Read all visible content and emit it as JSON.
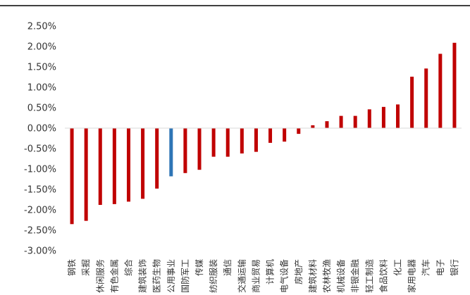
{
  "chart_data": {
    "type": "bar",
    "title": "",
    "xlabel": "",
    "ylabel": "",
    "ylim": [
      -3.0,
      2.5
    ],
    "yticks": [
      "2.50%",
      "2.00%",
      "1.50%",
      "1.00%",
      "0.50%",
      "0.00%",
      "-0.50%",
      "-1.00%",
      "-1.50%",
      "-2.00%",
      "-2.50%",
      "-3.00%"
    ],
    "ytick_values": [
      2.5,
      2.0,
      1.5,
      1.0,
      0.5,
      0.0,
      -0.5,
      -1.0,
      -1.5,
      -2.0,
      -2.5,
      -3.0
    ],
    "grid": false,
    "categories": [
      "钢铁",
      "采掘",
      "休闲服务",
      "有色金属",
      "综合",
      "建筑装饰",
      "医药生物",
      "公用事业",
      "国防军工",
      "传媒",
      "纺织服装",
      "通信",
      "交通运输",
      "商业贸易",
      "计算机",
      "电气设备",
      "房地产",
      "建筑材料",
      "农林牧渔",
      "机械设备",
      "非银金融",
      "轻工制造",
      "食品饮料",
      "化工",
      "家用电器",
      "汽车",
      "电子",
      "银行"
    ],
    "values": [
      -2.35,
      -2.27,
      -1.88,
      -1.86,
      -1.8,
      -1.73,
      -1.48,
      -1.18,
      -1.1,
      -1.02,
      -0.7,
      -0.7,
      -0.62,
      -0.58,
      -0.36,
      -0.33,
      -0.14,
      0.07,
      0.17,
      0.3,
      0.3,
      0.46,
      0.52,
      0.58,
      1.26,
      1.46,
      1.82,
      2.09
    ],
    "colors": {
      "default": "#C00000",
      "highlight": "#2E75B6",
      "axis": "#D9D9D9",
      "top_rule": "#000000"
    },
    "highlight_index": 7
  }
}
